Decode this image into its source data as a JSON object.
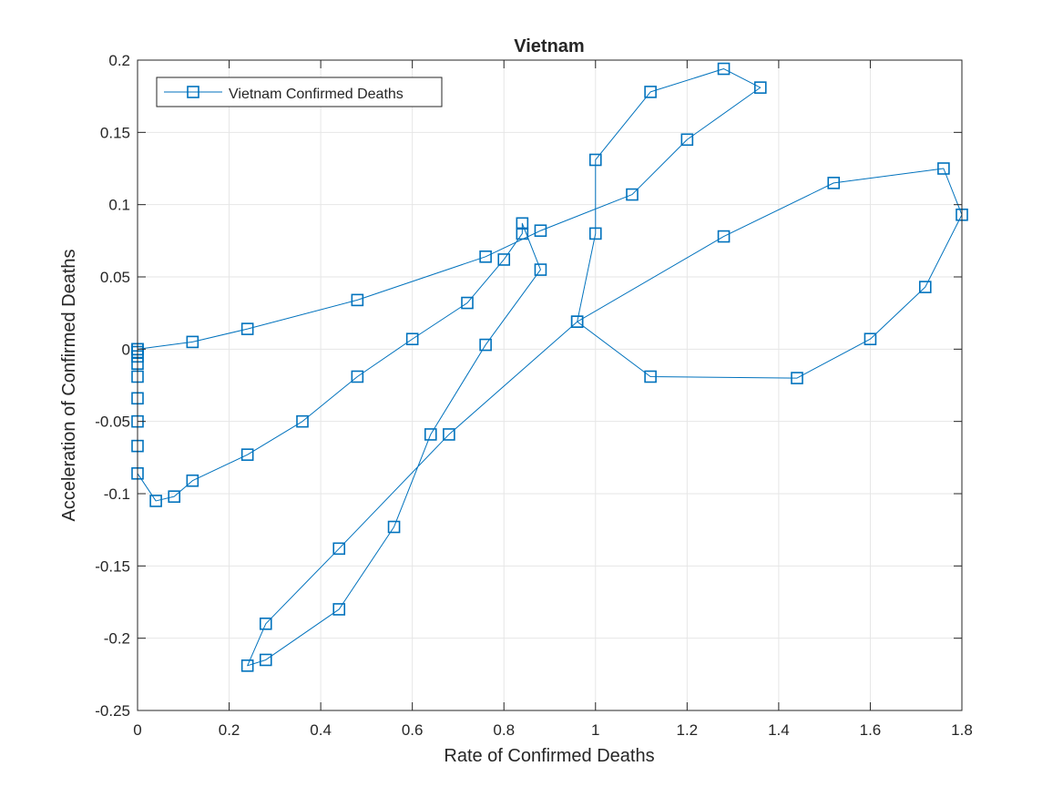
{
  "chart_data": {
    "type": "line",
    "title": "Vietnam",
    "xlabel": "Rate of Confirmed Deaths",
    "ylabel": "Acceleration of Confirmed Deaths",
    "xlim": [
      0,
      1.8
    ],
    "ylim": [
      -0.25,
      0.2
    ],
    "xticks": [
      0,
      0.2,
      0.4,
      0.6,
      0.8,
      1,
      1.2,
      1.4,
      1.6,
      1.8
    ],
    "xtick_labels": [
      "0",
      "0.2",
      "0.4",
      "0.6",
      "0.8",
      "1",
      "1.2",
      "1.4",
      "1.6",
      "1.8"
    ],
    "yticks": [
      -0.25,
      -0.2,
      -0.15,
      -0.1,
      -0.05,
      0,
      0.05,
      0.1,
      0.15,
      0.2
    ],
    "ytick_labels": [
      "-0.25",
      "-0.2",
      "-0.15",
      "-0.1",
      "-0.05",
      "0",
      "0.05",
      "0.1",
      "0.15",
      "0.2"
    ],
    "grid": true,
    "legend_position": "top-left",
    "series": [
      {
        "name": "Vietnam Confirmed Deaths",
        "color": "#0072bd",
        "marker": "square",
        "x": [
          0,
          0,
          0,
          0,
          0,
          0,
          0,
          0,
          0,
          0.04,
          0.08,
          0.12,
          0.24,
          0.36,
          0.48,
          0.6,
          0.72,
          0.8,
          0.84,
          0.84,
          0.88,
          0.76,
          0.64,
          0.56,
          0.44,
          0.28,
          0.24,
          0.28,
          0.44,
          0.68,
          0.96,
          1.28,
          1.52,
          1.76,
          1.8,
          1.72,
          1.6,
          1.44,
          1.12,
          0.96,
          1,
          1,
          1.12,
          1.28,
          1.36,
          1.2,
          1.08,
          0.88,
          0.76,
          0.48,
          0.24,
          0.12,
          0
        ],
        "y": [
          0,
          -0.002,
          -0.005,
          -0.01,
          -0.019,
          -0.034,
          -0.05,
          -0.067,
          -0.086,
          -0.105,
          -0.102,
          -0.091,
          -0.073,
          -0.05,
          -0.019,
          0.007,
          0.032,
          0.062,
          0.08,
          0.087,
          0.055,
          0.003,
          -0.059,
          -0.123,
          -0.18,
          -0.215,
          -0.219,
          -0.19,
          -0.138,
          -0.059,
          0.019,
          0.078,
          0.115,
          0.125,
          0.093,
          0.043,
          0.007,
          -0.02,
          -0.019,
          0.019,
          0.08,
          0.131,
          0.178,
          0.194,
          0.181,
          0.145,
          0.107,
          0.082,
          0.064,
          0.034,
          0.014,
          0.005,
          0
        ]
      }
    ]
  }
}
